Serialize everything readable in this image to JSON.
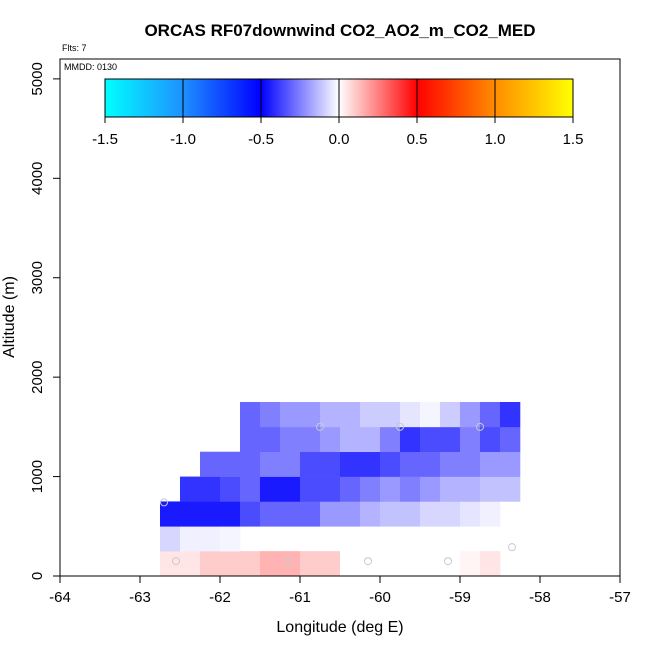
{
  "chart_data": {
    "type": "heatmap",
    "title": "ORCAS RF07downwind CO2_AO2_m_CO2_MED",
    "flights_label": "Flts: 7",
    "date_label": "MMDD: 0130",
    "xlabel": "Longitude (deg E)",
    "ylabel": "Altitude (m)",
    "xlim": [
      -64,
      -57
    ],
    "ylim": [
      0,
      5200
    ],
    "x_ticks": [
      -64,
      -63,
      -62,
      -61,
      -60,
      -59,
      -58,
      -57
    ],
    "y_ticks": [
      0,
      1000,
      2000,
      3000,
      4000,
      5000
    ],
    "colorbar": {
      "range": [
        -1.5,
        1.5
      ],
      "ticks": [
        -1.5,
        -1.0,
        -0.5,
        0.0,
        0.5,
        1.0,
        1.5
      ],
      "tick_labels": [
        "-1.5",
        "-1.0",
        "-0.5",
        "0.0",
        "0.5",
        "1.0",
        "1.5"
      ],
      "colors": [
        "#00ffff",
        "#1e90ff",
        "#0000ff",
        "#ffffff",
        "#ff0000",
        "#ff8c00",
        "#ffff00"
      ]
    },
    "cell_width_deg": 0.25,
    "cell_height_m": 250,
    "rows": [
      {
        "alt": 0,
        "lon_start": -62.75,
        "values": [
          0.05,
          0.05,
          0.1,
          0.1,
          0.1,
          0.15,
          0.15,
          0.1,
          0.1,
          0.0,
          0.0,
          0.0,
          0.0,
          0.0,
          0.0,
          0.02,
          0.05
        ]
      },
      {
        "alt": 250,
        "lon_start": -62.75,
        "values": [
          -0.08,
          -0.03,
          -0.03,
          -0.02
        ]
      },
      {
        "alt": 500,
        "lon_start": -62.75,
        "values": [
          -0.45,
          -0.45,
          -0.45,
          -0.45,
          -0.35,
          -0.3,
          -0.3,
          -0.3,
          -0.2,
          -0.2,
          -0.15,
          -0.12,
          -0.12,
          -0.08,
          -0.08,
          -0.05,
          -0.03
        ]
      },
      {
        "alt": 750,
        "lon_start": -62.5,
        "values": [
          -0.4,
          -0.4,
          -0.35,
          -0.3,
          -0.45,
          -0.45,
          -0.35,
          -0.35,
          -0.3,
          -0.25,
          -0.2,
          -0.25,
          -0.2,
          -0.15,
          -0.15,
          -0.12,
          -0.12
        ]
      },
      {
        "alt": 1000,
        "lon_start": -62.25,
        "values": [
          -0.3,
          -0.3,
          -0.3,
          -0.25,
          -0.25,
          -0.35,
          -0.35,
          -0.4,
          -0.4,
          -0.35,
          -0.3,
          -0.3,
          -0.25,
          -0.25,
          -0.2,
          -0.2
        ]
      },
      {
        "alt": 1250,
        "lon_start": -61.75,
        "values": [
          -0.3,
          -0.3,
          -0.25,
          -0.25,
          -0.2,
          -0.15,
          -0.15,
          -0.25,
          -0.4,
          -0.35,
          -0.35,
          -0.25,
          -0.35,
          -0.3
        ]
      },
      {
        "alt": 1500,
        "lon_start": -61.75,
        "values": [
          -0.3,
          -0.25,
          -0.2,
          -0.2,
          -0.15,
          -0.15,
          -0.1,
          -0.1,
          -0.05,
          -0.02,
          -0.1,
          -0.2,
          -0.3,
          -0.4
        ]
      }
    ],
    "sample_points": [
      {
        "lon": -62.7,
        "alt": 740
      },
      {
        "lon": -62.55,
        "alt": 150
      },
      {
        "lon": -61.15,
        "alt": 150
      },
      {
        "lon": -60.75,
        "alt": 1500
      },
      {
        "lon": -60.15,
        "alt": 150
      },
      {
        "lon": -59.75,
        "alt": 1500
      },
      {
        "lon": -59.15,
        "alt": 150
      },
      {
        "lon": -58.75,
        "alt": 1500
      },
      {
        "lon": -58.35,
        "alt": 290
      }
    ]
  }
}
